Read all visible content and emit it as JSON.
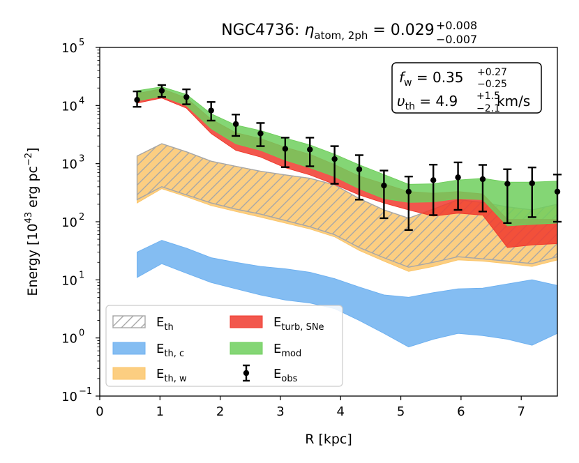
{
  "chart_data": {
    "type": "area",
    "title": {
      "prefix": "NGC4736: ",
      "eta_symbol": "η",
      "eta_sub": "atom, 2ph",
      "equals": " = 0.029",
      "sup": "+0.008",
      "sub": "−0.007"
    },
    "xlabel": "R [kpc]",
    "ylabel": {
      "main": "Energy [10",
      "exp": "43",
      "unit": " erg pc",
      "unit_exp": "−2",
      "close": "]"
    },
    "xlim": [
      0,
      7.6
    ],
    "ylim_log10": [
      -1,
      5
    ],
    "y_scale": "log",
    "x_ticks": [
      0,
      1,
      2,
      3,
      4,
      5,
      6,
      7
    ],
    "x_tick_labels": [
      "0",
      "1",
      "2",
      "3",
      "4",
      "5",
      "6",
      "7"
    ],
    "y_tick_exponents": [
      -1,
      0,
      1,
      2,
      3,
      4,
      5
    ],
    "y_tick_base": "10",
    "y_tick_exp_labels": [
      "−1",
      "0",
      "1",
      "2",
      "3",
      "4",
      "5"
    ],
    "annotation": {
      "fw_label": "f",
      "fw_sub": "w",
      "fw_value": " = 0.35",
      "fw_sup": "+0.27",
      "fw_subv": "−0.25",
      "vth_label": "υ",
      "vth_sub": "th",
      "vth_value": " = 4.9",
      "vth_sup": "+1.5",
      "vth_subv": "−2.1",
      "vth_unit": " km/s"
    },
    "x": [
      0.62,
      1.03,
      1.44,
      1.85,
      2.26,
      2.67,
      3.08,
      3.49,
      3.9,
      4.31,
      4.72,
      5.13,
      5.54,
      5.95,
      6.36,
      6.77,
      7.18,
      7.6
    ],
    "series": [
      {
        "name": "E_th,c",
        "color": "#6fb1f0",
        "lower": [
          11,
          19,
          13,
          9,
          7,
          5.5,
          4.5,
          4,
          3.2,
          2,
          1.2,
          0.7,
          0.95,
          1.2,
          1.1,
          0.95,
          0.75,
          1.2
        ],
        "upper": [
          30,
          48,
          35,
          24,
          20,
          17,
          15.5,
          13.5,
          10.5,
          7.5,
          5.5,
          5,
          6,
          7,
          7.2,
          8.5,
          10,
          8
        ]
      },
      {
        "name": "E_th,w",
        "color": "#fbc66b",
        "lower": [
          210,
          370,
          270,
          190,
          150,
          120,
          95,
          75,
          55,
          32,
          21,
          14,
          17,
          22,
          21,
          19,
          17,
          22
        ],
        "upper": [
          1350,
          2200,
          1600,
          1100,
          900,
          740,
          640,
          560,
          430,
          250,
          160,
          115,
          165,
          240,
          215,
          180,
          160,
          200
        ]
      },
      {
        "name": "E_th",
        "color": "#a7a7a7",
        "hatched": true,
        "lower": [
          240,
          400,
          290,
          210,
          165,
          135,
          105,
          82,
          60,
          36,
          24,
          16.5,
          20,
          25,
          23,
          21,
          19,
          25
        ],
        "upper": [
          1350,
          2200,
          1600,
          1100,
          900,
          740,
          640,
          560,
          430,
          250,
          160,
          115,
          165,
          240,
          215,
          180,
          160,
          200
        ]
      },
      {
        "name": "E_turb,SNe",
        "color": "#f03a2e",
        "lower": [
          11000,
          13500,
          9000,
          3300,
          1700,
          1300,
          850,
          640,
          440,
          290,
          210,
          160,
          125,
          140,
          130,
          36,
          40,
          42
        ],
        "upper": [
          16000,
          19500,
          13500,
          5800,
          3400,
          2700,
          1900,
          1450,
          960,
          610,
          450,
          330,
          310,
          330,
          300,
          110,
          110,
          110
        ]
      },
      {
        "name": "E_mod",
        "color": "#6fcf5d",
        "lower": [
          12000,
          14500,
          10000,
          4000,
          2200,
          1700,
          1150,
          850,
          600,
          370,
          250,
          215,
          220,
          250,
          240,
          85,
          90,
          95
        ],
        "upper": [
          18000,
          21000,
          15500,
          7200,
          4600,
          3700,
          2750,
          2100,
          1450,
          950,
          650,
          440,
          450,
          520,
          560,
          480,
          480,
          500
        ]
      }
    ],
    "observed": {
      "name": "E_obs",
      "color": "#000000",
      "x": [
        0.62,
        1.03,
        1.44,
        1.85,
        2.26,
        2.67,
        3.08,
        3.49,
        3.9,
        4.31,
        4.72,
        5.13,
        5.54,
        5.95,
        6.36,
        6.77,
        7.18,
        7.6
      ],
      "y": [
        12500,
        18000,
        14000,
        8200,
        4800,
        3300,
        1800,
        1750,
        1200,
        800,
        420,
        330,
        520,
        580,
        540,
        450,
        460,
        330
      ],
      "yerr_low": [
        9500,
        14000,
        10500,
        5500,
        3000,
        2000,
        870,
        900,
        450,
        240,
        115,
        72,
        130,
        160,
        150,
        95,
        120,
        100
      ],
      "yerr_high": [
        17500,
        22500,
        19000,
        11500,
        7000,
        5000,
        2800,
        2800,
        2000,
        1400,
        760,
        600,
        960,
        1050,
        950,
        800,
        860,
        650
      ]
    },
    "legend": {
      "position": "lower-left",
      "entries": [
        {
          "key": "E_th",
          "base": "E",
          "sub": "th",
          "style": "hatch",
          "color": "#a7a7a7"
        },
        {
          "key": "E_turb,SNe",
          "base": "E",
          "sub": "turb, SNe",
          "style": "fill",
          "color": "#f03a2e"
        },
        {
          "key": "E_th,c",
          "base": "E",
          "sub": "th, c",
          "style": "fill",
          "color": "#6fb1f0"
        },
        {
          "key": "E_mod",
          "base": "E",
          "sub": "mod",
          "style": "fill",
          "color": "#6fcf5d"
        },
        {
          "key": "E_th,w",
          "base": "E",
          "sub": "th, w",
          "style": "fill",
          "color": "#fbc66b"
        },
        {
          "key": "E_obs",
          "base": "E",
          "sub": "obs",
          "style": "errorbar",
          "color": "#000000"
        }
      ]
    }
  }
}
